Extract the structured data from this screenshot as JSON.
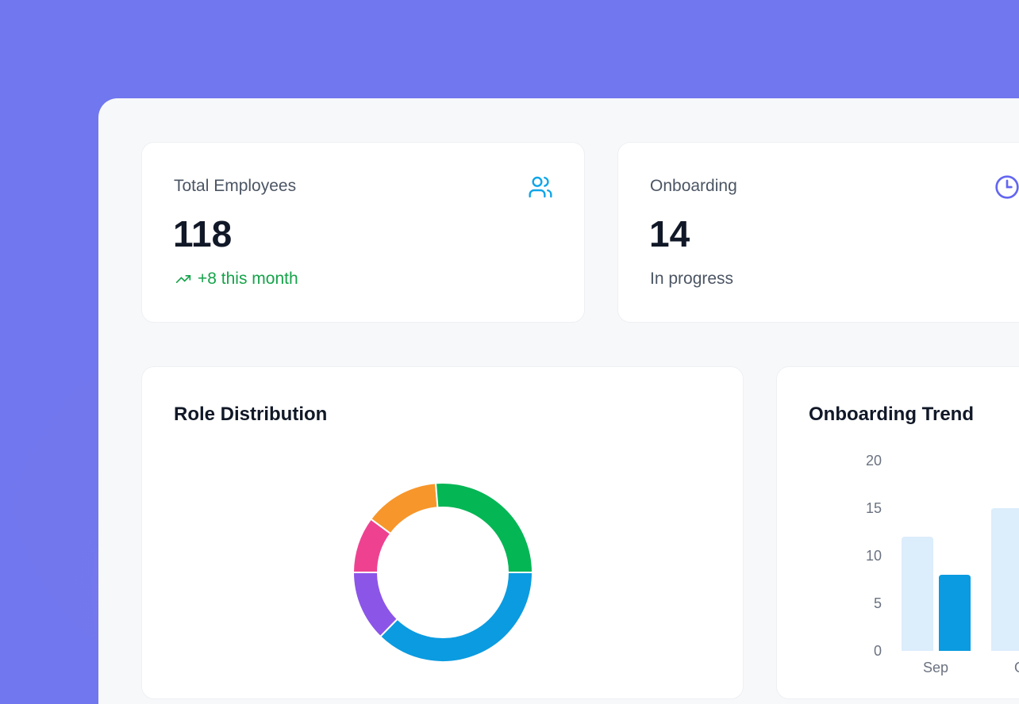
{
  "stats": [
    {
      "label": "Total Employees",
      "value": "118",
      "sub": "+8 this month",
      "icon": "users-icon",
      "icon_color": "#0ea5e9",
      "sub_color": "#16a34a"
    },
    {
      "label": "Onboarding",
      "value": "14",
      "sub": "In progress",
      "icon": "clock-icon",
      "icon_color": "#6366f1"
    }
  ],
  "charts": {
    "role_title": "Role Distribution",
    "trend_title": "Onboarding Trend"
  },
  "chart_data": [
    {
      "type": "pie",
      "title": "Role Distribution",
      "donut": true,
      "values": [
        44,
        15,
        12,
        16,
        31
      ],
      "colors": [
        "#0b9be0",
        "#8b55e8",
        "#ee4291",
        "#f7962b",
        "#05b655"
      ]
    },
    {
      "type": "bar",
      "title": "Onboarding Trend",
      "categories": [
        "Sep",
        "Oct"
      ],
      "yticks": [
        "0",
        "5",
        "10",
        "15",
        "20"
      ],
      "ylim": [
        0,
        20
      ],
      "series": [
        {
          "values": [
            12,
            15
          ],
          "color": "#dcedfb"
        },
        {
          "values": [
            8,
            null
          ],
          "color": "#0b9be0"
        }
      ]
    }
  ]
}
